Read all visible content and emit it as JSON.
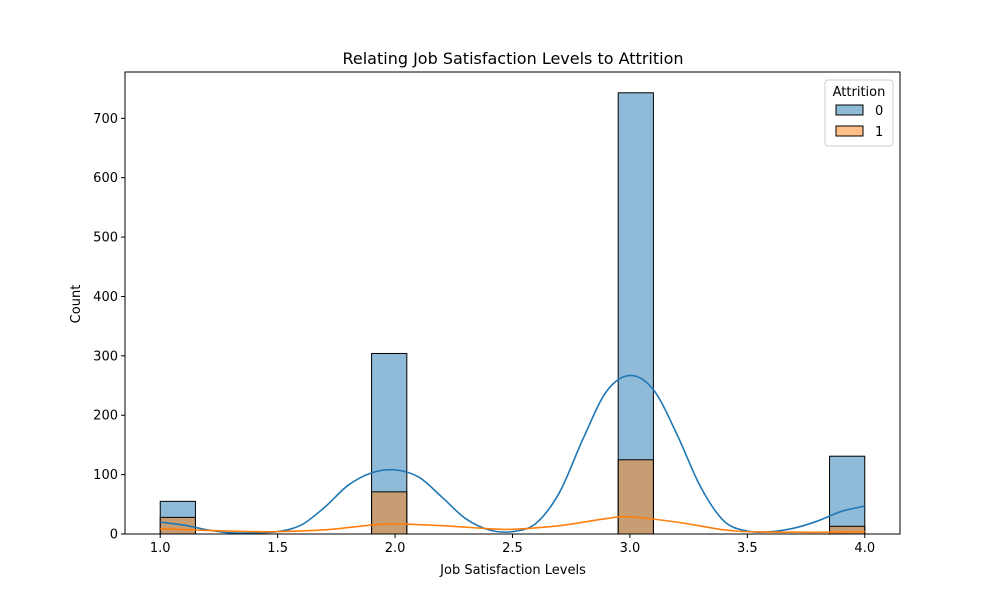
{
  "chart_data": {
    "type": "histogram",
    "title": "Relating Job Satisfaction Levels to Attrition",
    "xlabel": "Job Satisfaction Levels",
    "ylabel": "Count",
    "xlim": [
      0.85,
      4.15
    ],
    "ylim": [
      0,
      778
    ],
    "x_ticks": [
      "1.0",
      "1.5",
      "2.0",
      "2.5",
      "3.0",
      "3.5",
      "4.0"
    ],
    "y_ticks": [
      "0",
      "100",
      "200",
      "300",
      "400",
      "500",
      "600",
      "700"
    ],
    "bins": [
      {
        "start": 1.0,
        "end": 1.15
      },
      {
        "start": 1.9,
        "end": 2.05
      },
      {
        "start": 2.95,
        "end": 3.1
      },
      {
        "start": 3.85,
        "end": 4.0
      }
    ],
    "legend": {
      "title": "Attrition",
      "position": "top-right"
    },
    "series": [
      {
        "name": "0",
        "color": "#1f77b4",
        "values": [
          55,
          304,
          743,
          131
        ]
      },
      {
        "name": "1",
        "color": "#ff7f0e",
        "values": [
          28,
          71,
          125,
          13
        ]
      }
    ],
    "kde": [
      {
        "series": "0",
        "color": "#1f77b4",
        "x": [
          1.0,
          1.1,
          1.2,
          1.3,
          1.4,
          1.5,
          1.6,
          1.7,
          1.8,
          1.9,
          2.0,
          2.1,
          2.2,
          2.3,
          2.4,
          2.5,
          2.6,
          2.7,
          2.8,
          2.9,
          3.0,
          3.1,
          3.2,
          3.3,
          3.4,
          3.5,
          3.6,
          3.7,
          3.8,
          3.9,
          4.0
        ],
        "y": [
          20,
          15,
          7,
          2,
          2,
          4,
          15,
          45,
          82,
          103,
          108,
          96,
          62,
          26,
          7,
          4,
          18,
          70,
          160,
          240,
          267,
          243,
          168,
          80,
          22,
          5,
          4,
          10,
          22,
          38,
          47
        ]
      },
      {
        "series": "1",
        "color": "#ff7f0e",
        "x": [
          1.0,
          1.2,
          1.4,
          1.5,
          1.7,
          1.9,
          2.0,
          2.2,
          2.4,
          2.5,
          2.7,
          2.9,
          3.0,
          3.2,
          3.4,
          3.5,
          3.7,
          3.9,
          4.0
        ],
        "y": [
          9,
          6,
          4,
          4,
          7,
          15,
          17,
          14,
          9,
          8,
          14,
          26,
          29,
          20,
          7,
          4,
          3,
          3,
          4
        ]
      }
    ]
  }
}
